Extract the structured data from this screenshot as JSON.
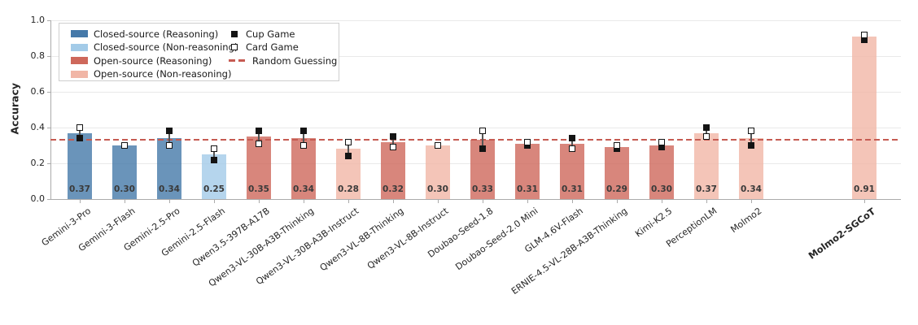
{
  "chart_data": {
    "type": "bar",
    "title": "",
    "xlabel": "",
    "ylabel": "Accuracy",
    "ylim": [
      0.0,
      1.0
    ],
    "yticks": [
      0.0,
      0.2,
      0.4,
      0.6,
      0.8,
      1.0
    ],
    "grid": true,
    "legend_position": "upper-left",
    "random_guessing_value": 0.33,
    "legend": {
      "patches": [
        {
          "label": "Closed-source (Reasoning)",
          "group": "closed_reasoning"
        },
        {
          "label": "Closed-source (Non-reasoning)",
          "group": "closed_non_reasoning"
        },
        {
          "label": "Open-source (Reasoning)",
          "group": "open_reasoning"
        },
        {
          "label": "Open-source (Non-reasoning)",
          "group": "open_non_reasoning"
        }
      ],
      "markers": [
        {
          "label": "Cup Game",
          "type": "filled-square"
        },
        {
          "label": "Card Game",
          "type": "open-square"
        },
        {
          "label": "Random Guessing",
          "type": "dashed-line"
        }
      ]
    },
    "colors": {
      "closed_reasoning": "#4579A9",
      "closed_non_reasoning": "#A3CBE8",
      "open_reasoning": "#CE685B",
      "open_non_reasoning": "#F1B6A6",
      "random_line": "#C65B52",
      "marker_fill": "#141414",
      "marker_open_fill": "#FFFFFF",
      "marker_edge": "#141414",
      "stem": "#555555",
      "grid": "#E9E9E9",
      "axis": "#ABABAB",
      "text": "#262626"
    },
    "models": [
      {
        "label": "Gemini-3-Pro",
        "group": "closed_reasoning",
        "value": 0.37,
        "cup": 0.34,
        "card": 0.4,
        "emphasis": false
      },
      {
        "label": "Gemini-3-Flash",
        "group": "closed_reasoning",
        "value": 0.3,
        "cup": 0.3,
        "card": 0.3,
        "emphasis": false
      },
      {
        "label": "Gemini-2.5-Pro",
        "group": "closed_reasoning",
        "value": 0.34,
        "cup": 0.38,
        "card": 0.3,
        "emphasis": false
      },
      {
        "label": "Gemini-2.5-Flash",
        "group": "closed_non_reasoning",
        "value": 0.25,
        "cup": 0.22,
        "card": 0.28,
        "emphasis": false
      },
      {
        "label": "Qwen3.5-397B-A17B",
        "group": "open_reasoning",
        "value": 0.35,
        "cup": 0.38,
        "card": 0.31,
        "emphasis": false
      },
      {
        "label": "Qwen3-VL-30B-A3B-Thinking",
        "group": "open_reasoning",
        "value": 0.34,
        "cup": 0.38,
        "card": 0.3,
        "emphasis": false
      },
      {
        "label": "Qwen3-VL-30B-A3B-Instruct",
        "group": "open_non_reasoning",
        "value": 0.28,
        "cup": 0.24,
        "card": 0.32,
        "emphasis": false
      },
      {
        "label": "Qwen3-VL-8B-Thinking",
        "group": "open_reasoning",
        "value": 0.32,
        "cup": 0.35,
        "card": 0.29,
        "emphasis": false
      },
      {
        "label": "Qwen3-VL-8B-Instruct",
        "group": "open_non_reasoning",
        "value": 0.3,
        "cup": 0.3,
        "card": 0.3,
        "emphasis": false
      },
      {
        "label": "Doubao-Seed-1.8",
        "group": "open_reasoning",
        "value": 0.33,
        "cup": 0.28,
        "card": 0.38,
        "emphasis": false
      },
      {
        "label": "Doubao-Seed-2.0 Mini",
        "group": "open_reasoning",
        "value": 0.31,
        "cup": 0.3,
        "card": 0.32,
        "emphasis": false
      },
      {
        "label": "GLM-4.6V-Flash",
        "group": "open_reasoning",
        "value": 0.31,
        "cup": 0.34,
        "card": 0.28,
        "emphasis": false
      },
      {
        "label": "ERNIE-4.5-VL-28B-A3B-Thinking",
        "group": "open_reasoning",
        "value": 0.29,
        "cup": 0.28,
        "card": 0.3,
        "emphasis": false
      },
      {
        "label": "Kimi-K2.5",
        "group": "open_reasoning",
        "value": 0.3,
        "cup": 0.29,
        "card": 0.32,
        "emphasis": false
      },
      {
        "label": "PerceptionLM",
        "group": "open_non_reasoning",
        "value": 0.37,
        "cup": 0.4,
        "card": 0.35,
        "emphasis": false
      },
      {
        "label": "Molmo2",
        "group": "open_non_reasoning",
        "value": 0.34,
        "cup": 0.3,
        "card": 0.38,
        "emphasis": false
      },
      {
        "label": "Molmo2-SGCoT",
        "group": "open_non_reasoning",
        "value": 0.91,
        "cup": 0.89,
        "card": 0.92,
        "emphasis": true
      }
    ]
  }
}
